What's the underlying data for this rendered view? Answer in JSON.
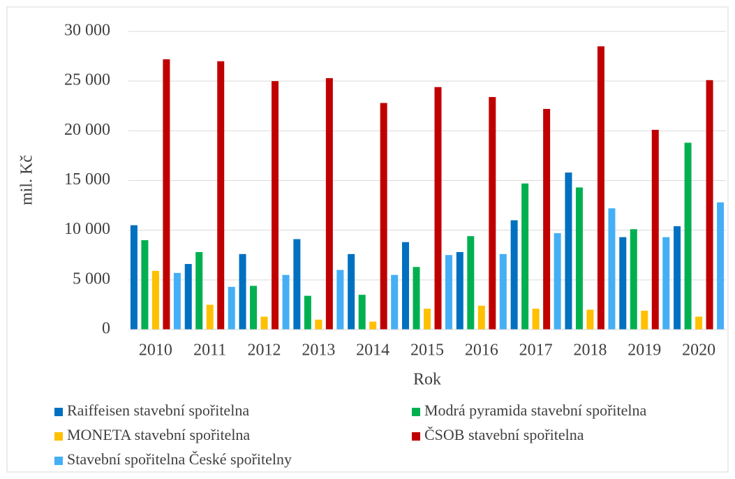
{
  "chart_data": {
    "type": "bar",
    "xlabel": "Rok",
    "ylabel": "mil. Kč",
    "categories": [
      "2010",
      "2011",
      "2012",
      "2013",
      "2014",
      "2015",
      "2016",
      "2017",
      "2018",
      "2019",
      "2020"
    ],
    "series": [
      {
        "name": "Raiffeisen stavební spořitelna",
        "color": "#0070c0",
        "values": [
          10500,
          6600,
          7600,
          9100,
          7600,
          8800,
          7800,
          11000,
          15800,
          9300,
          10400
        ]
      },
      {
        "name": "Modrá pyramida stavební spořitelna",
        "color": "#00b050",
        "values": [
          9000,
          7800,
          4400,
          3400,
          3500,
          6300,
          9400,
          14700,
          14300,
          10100,
          18800
        ]
      },
      {
        "name": "MONETA stavební spořitelna",
        "color": "#ffc000",
        "values": [
          5900,
          2500,
          1300,
          1000,
          800,
          2100,
          2400,
          2100,
          2000,
          1900,
          1300
        ]
      },
      {
        "name": "ČSOB stavební spořitelna",
        "color": "#c00000",
        "values": [
          27200,
          27000,
          25000,
          25300,
          22800,
          24400,
          23400,
          22200,
          28500,
          20100,
          25100
        ]
      },
      {
        "name": "Stavební spořitelna České spořitelny",
        "color": "#45aff5",
        "values": [
          5700,
          4300,
          5500,
          6000,
          5500,
          7500,
          7600,
          9700,
          12200,
          9300,
          12800
        ]
      }
    ],
    "ylim": [
      0,
      30000
    ],
    "yticks": [
      0,
      {
        "value": 5000,
        "label": "5 000"
      },
      {
        "value": 10000,
        "label": "10 000"
      },
      {
        "value": 15000,
        "label": "15 000"
      },
      {
        "value": 20000,
        "label": "20 000"
      },
      {
        "value": 25000,
        "label": "25 000"
      },
      {
        "value": 30000,
        "label": "30 000"
      }
    ],
    "grid": true
  }
}
